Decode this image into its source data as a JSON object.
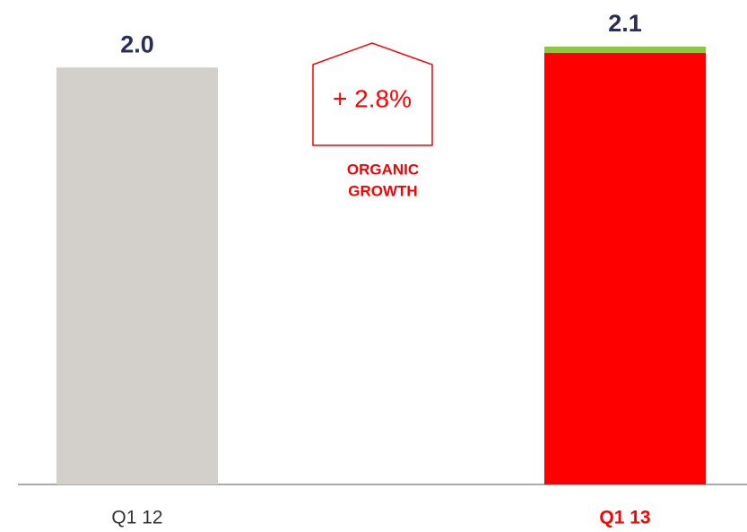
{
  "chart_data": {
    "type": "stacked_bar",
    "categories": [
      "Q1 12",
      "Q1 13"
    ],
    "category_label_colors": [
      "#333333",
      "#ff0000"
    ],
    "category_label_weights": [
      "normal",
      "bold"
    ],
    "series": [
      {
        "colors": [
          "#d3d0cb",
          "#ff0000"
        ],
        "values": [
          2.0,
          2.07
        ]
      },
      {
        "colors": [
          "#8dc63f",
          "#8dc63f"
        ],
        "values": [
          0,
          0.03
        ]
      }
    ],
    "totals": [
      2.0,
      2.1
    ],
    "value_labels": [
      "2.0",
      "2.1"
    ],
    "annotation": {
      "value": "+ 2.8%",
      "label": [
        "ORGANIC",
        "GROWTH"
      ]
    }
  }
}
